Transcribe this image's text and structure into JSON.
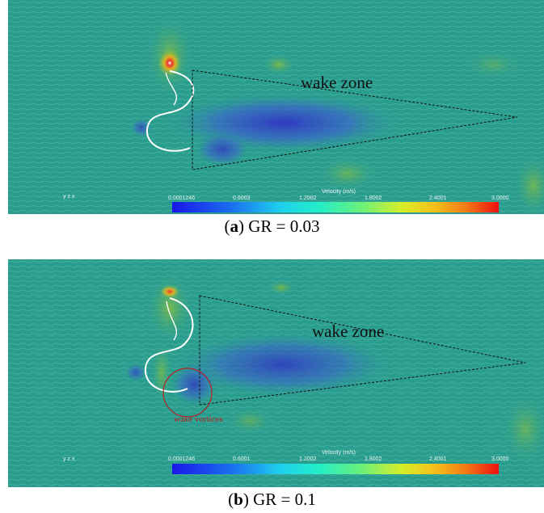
{
  "panels": [
    {
      "caption_letter": "a",
      "caption_rest": " GR = 0.03",
      "wake_label": "wake zone",
      "colorbar_title": "Velocity (m/s)",
      "colorbar_ticks": [
        "0.0001246",
        "0.6003",
        "1.2002",
        "1.8002",
        "2.4001",
        "3.0000"
      ],
      "axis_labels": "y z x"
    },
    {
      "caption_letter": "b",
      "caption_rest": " GR = 0.1",
      "wake_label": "wake zone",
      "vortex_label": "wake vortices",
      "colorbar_title": "Velocity (m/s)",
      "colorbar_ticks": [
        "0.0001246",
        "0.6001",
        "1.2002",
        "1.8002",
        "2.4001",
        "3.0000"
      ],
      "axis_labels": "y z x"
    }
  ],
  "colors": {
    "field_base": "#2a9e8e",
    "low_velocity": "#3a34c8",
    "high_velocity": "#e8342a",
    "streamline": "#ffffff",
    "wake_boundary": "#111111",
    "vortex_marker": "#b22222"
  }
}
